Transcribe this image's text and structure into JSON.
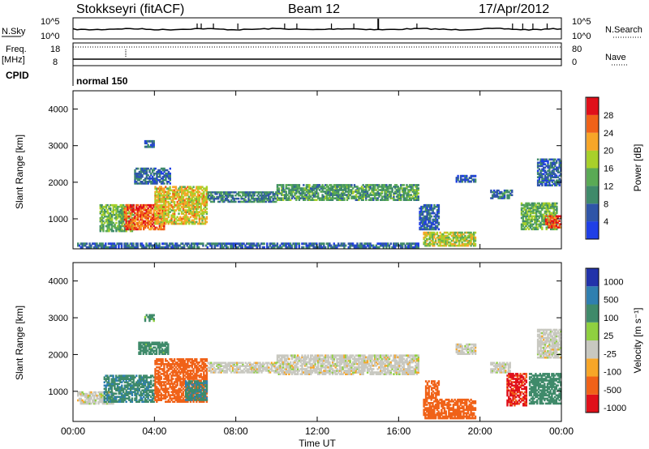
{
  "header": {
    "title": "Stokkseyri (fitACF)",
    "beam": "Beam 12",
    "date": "17/Apr/2012"
  },
  "panels": {
    "nsky": {
      "label": "N.Sky",
      "tick_top": "10^5",
      "tick_bottom": "10^0",
      "right_label": "N.Search",
      "right_tick_top": "10^5",
      "right_tick_bottom": "10^0"
    },
    "freq": {
      "label_1": "Freq.",
      "label_2": "[MHz]",
      "tick_top": "18",
      "tick_bottom": "8",
      "right_label": "Nave",
      "right_tick_top": "80",
      "right_tick_bottom": "0"
    },
    "cpid": {
      "label": "CPID",
      "mode": "normal 150"
    }
  },
  "colors": {
    "power": [
      "#1f3fe6",
      "#2f55a8",
      "#3f8a6a",
      "#5aaa55",
      "#a8d02a",
      "#f7a628",
      "#f06218",
      "#e0101a"
    ],
    "velocity": [
      "#e0101a",
      "#f06218",
      "#f7a628",
      "#c8c8c0",
      "#8fd040",
      "#3f8a6a",
      "#2f7fb0",
      "#2233aa"
    ]
  },
  "chart_data": [
    {
      "type": "heatmap",
      "name": "Power",
      "ylabel": "Slant Range [km]",
      "yticks": [
        1000,
        2000,
        3000,
        4000
      ],
      "ylim": [
        180,
        4500
      ],
      "xlim": [
        0,
        24
      ],
      "xticks": [
        "00:00",
        "04:00",
        "08:00",
        "12:00",
        "16:00",
        "20:00",
        "00:00"
      ],
      "colorbar": {
        "label": "Power [dB]",
        "ticks": [
          "4",
          "8",
          "12",
          "16",
          "20",
          "24",
          "28"
        ],
        "range": [
          0,
          32
        ]
      },
      "regions": [
        {
          "t0": 1.3,
          "t1": 3.0,
          "r0": 650,
          "r1": 1400,
          "value": 14
        },
        {
          "t0": 2.5,
          "t1": 4.5,
          "r0": 700,
          "r1": 1400,
          "value": 26
        },
        {
          "t0": 4.0,
          "t1": 6.6,
          "r0": 850,
          "r1": 1900,
          "value": 20
        },
        {
          "t0": 6.6,
          "t1": 10.0,
          "r0": 1450,
          "r1": 1750,
          "value": 9
        },
        {
          "t0": 10.0,
          "t1": 17.0,
          "r0": 1500,
          "r1": 1950,
          "value": 12
        },
        {
          "t0": 3.0,
          "t1": 4.8,
          "r0": 1950,
          "r1": 2400,
          "value": 7
        },
        {
          "t0": 3.5,
          "t1": 4.0,
          "r0": 2950,
          "r1": 3150,
          "value": 6
        },
        {
          "t0": 17.2,
          "t1": 19.8,
          "r0": 250,
          "r1": 650,
          "value": 18
        },
        {
          "t0": 17.0,
          "t1": 18.0,
          "r0": 700,
          "r1": 1400,
          "value": 6
        },
        {
          "t0": 18.8,
          "t1": 19.8,
          "r0": 2000,
          "r1": 2200,
          "value": 6
        },
        {
          "t0": 20.5,
          "t1": 21.6,
          "r0": 1550,
          "r1": 1800,
          "value": 8
        },
        {
          "t0": 22.0,
          "t1": 23.8,
          "r0": 700,
          "r1": 1450,
          "value": 14
        },
        {
          "t0": 23.2,
          "t1": 24.0,
          "r0": 750,
          "r1": 1100,
          "value": 27
        },
        {
          "t0": 22.8,
          "t1": 24.0,
          "r0": 1900,
          "r1": 2650,
          "value": 7
        },
        {
          "t0": 0.2,
          "t1": 17.0,
          "r0": 200,
          "r1": 350,
          "value": 7
        }
      ]
    },
    {
      "type": "heatmap",
      "name": "Velocity",
      "ylabel": "Slant Range [km]",
      "yticks": [
        1000,
        2000,
        3000,
        4000
      ],
      "ylim": [
        180,
        4500
      ],
      "xlim": [
        0,
        24
      ],
      "xticks": [
        "00:00",
        "04:00",
        "08:00",
        "12:00",
        "16:00",
        "20:00",
        "00:00"
      ],
      "xlabel": "Time UT",
      "colorbar": {
        "label": "Velocity [m s⁻¹]",
        "ticks": [
          "1000",
          "500",
          "100",
          "25",
          "-25",
          "-100",
          "-500",
          "-1000"
        ]
      },
      "regions": [
        {
          "t0": 0.2,
          "t1": 2.0,
          "r0": 650,
          "r1": 1000,
          "value": 0
        },
        {
          "t0": 1.5,
          "t1": 4.0,
          "r0": 700,
          "r1": 1450,
          "value": 400
        },
        {
          "t0": 4.0,
          "t1": 6.6,
          "r0": 700,
          "r1": 1900,
          "value": -150
        },
        {
          "t0": 5.5,
          "t1": 6.6,
          "r0": 750,
          "r1": 1300,
          "value": 400
        },
        {
          "t0": 6.6,
          "t1": 10.0,
          "r0": 1500,
          "r1": 1800,
          "value": 0
        },
        {
          "t0": 10.0,
          "t1": 17.0,
          "r0": 1450,
          "r1": 2000,
          "value": 0
        },
        {
          "t0": 3.2,
          "t1": 4.7,
          "r0": 2000,
          "r1": 2350,
          "value": 200
        },
        {
          "t0": 3.5,
          "t1": 4.0,
          "r0": 2900,
          "r1": 3100,
          "value": 150
        },
        {
          "t0": 17.2,
          "t1": 19.8,
          "r0": 250,
          "r1": 800,
          "value": -300
        },
        {
          "t0": 17.3,
          "t1": 18.0,
          "r0": 800,
          "r1": 1300,
          "value": -150
        },
        {
          "t0": 18.8,
          "t1": 19.8,
          "r0": 2000,
          "r1": 2300,
          "value": 0
        },
        {
          "t0": 20.5,
          "t1": 21.5,
          "r0": 1500,
          "r1": 1800,
          "value": 0
        },
        {
          "t0": 21.3,
          "t1": 22.3,
          "r0": 600,
          "r1": 1500,
          "value": -600
        },
        {
          "t0": 22.4,
          "t1": 24.0,
          "r0": 650,
          "r1": 1500,
          "value": 300
        },
        {
          "t0": 22.8,
          "t1": 24.0,
          "r0": 1900,
          "r1": 2700,
          "value": 0
        }
      ]
    }
  ]
}
